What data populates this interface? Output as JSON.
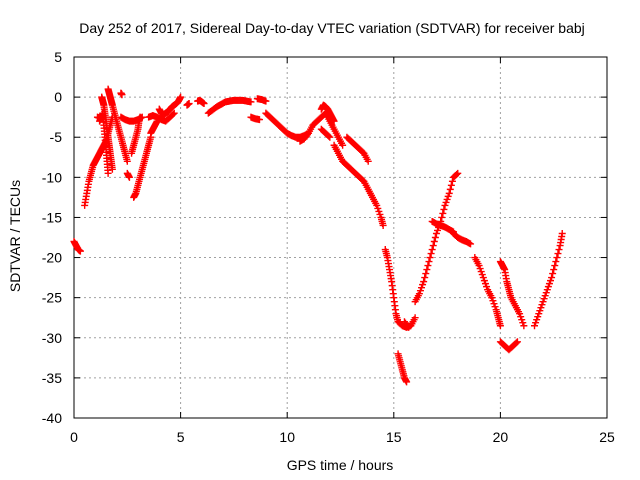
{
  "chart_data": {
    "type": "scatter",
    "title": "Day 252 of 2017, Sidereal Day-to-day VTEC variation (SDTVAR) for receiver babj",
    "xlabel": "GPS time / hours",
    "ylabel": "SDTVAR / TECUs",
    "xlim": [
      0,
      25
    ],
    "ylim": [
      -40,
      5
    ],
    "x_ticks": [
      0,
      5,
      10,
      15,
      20,
      25
    ],
    "y_ticks": [
      5,
      0,
      -5,
      -10,
      -15,
      -20,
      -25,
      -30,
      -35,
      -40
    ],
    "x_tick_labels": [
      "0",
      "5",
      "10",
      "15",
      "20",
      "25"
    ],
    "y_tick_labels": [
      "5",
      "0",
      "-5",
      "-10",
      "-15",
      "-20",
      "-25",
      "-30",
      "-35",
      "-40"
    ],
    "grid": true,
    "marker": "+",
    "marker_color": "#ff0000",
    "series": [
      {
        "name": "s1",
        "points": [
          [
            0.0,
            -18.0
          ],
          [
            0.1,
            -18.5
          ],
          [
            0.2,
            -19.0
          ],
          [
            0.3,
            -19.2
          ]
        ]
      },
      {
        "name": "s2",
        "points": [
          [
            0.5,
            -13.5
          ],
          [
            0.6,
            -12.0
          ],
          [
            0.7,
            -10.5
          ],
          [
            0.8,
            -9.5
          ],
          [
            0.9,
            -8.5
          ],
          [
            1.0,
            -8.0
          ],
          [
            1.1,
            -7.5
          ],
          [
            1.2,
            -7.0
          ],
          [
            1.3,
            -6.5
          ],
          [
            1.4,
            -6.0
          ],
          [
            1.5,
            -5.5
          ],
          [
            1.6,
            -4.5
          ],
          [
            1.7,
            -3.5
          ],
          [
            1.8,
            -2.5
          ]
        ]
      },
      {
        "name": "s3",
        "points": [
          [
            1.2,
            -3.0
          ],
          [
            1.3,
            -2.5
          ],
          [
            1.35,
            -2.0
          ],
          [
            1.4,
            -3.5
          ],
          [
            1.45,
            -5.0
          ],
          [
            1.5,
            -6.5
          ],
          [
            1.55,
            -8.0
          ],
          [
            1.6,
            -9.5
          ]
        ]
      },
      {
        "name": "s4",
        "points": [
          [
            1.3,
            0.0
          ],
          [
            1.35,
            -0.5
          ],
          [
            1.4,
            -1.0
          ],
          [
            1.45,
            -2.0
          ],
          [
            1.5,
            -3.0
          ],
          [
            1.55,
            -4.0
          ],
          [
            1.6,
            -5.0
          ],
          [
            1.65,
            -6.0
          ],
          [
            1.7,
            -7.0
          ],
          [
            1.75,
            -8.0
          ],
          [
            1.8,
            -9.0
          ]
        ]
      },
      {
        "name": "s5",
        "points": [
          [
            1.6,
            1.0
          ],
          [
            1.65,
            0.5
          ],
          [
            1.7,
            0.0
          ],
          [
            1.75,
            -0.5
          ],
          [
            1.8,
            -1.0
          ],
          [
            1.9,
            -2.0
          ],
          [
            2.0,
            -3.0
          ],
          [
            2.1,
            -4.0
          ],
          [
            2.2,
            -5.0
          ],
          [
            2.3,
            -6.0
          ],
          [
            2.4,
            -7.0
          ],
          [
            2.5,
            -8.0
          ]
        ]
      },
      {
        "name": "s6",
        "points": [
          [
            1.1,
            -2.5
          ],
          [
            1.2,
            -2.6
          ]
        ]
      },
      {
        "name": "s7",
        "points": [
          [
            2.2,
            -2.5
          ],
          [
            2.4,
            -2.8
          ],
          [
            2.6,
            -3.0
          ],
          [
            2.8,
            -3.0
          ],
          [
            3.0,
            -2.8
          ],
          [
            3.2,
            -2.5
          ]
        ]
      },
      {
        "name": "s8",
        "points": [
          [
            2.5,
            -9.5
          ],
          [
            2.6,
            -10.0
          ]
        ]
      },
      {
        "name": "s9",
        "points": [
          [
            2.2,
            0.5
          ],
          [
            2.25,
            0.3
          ]
        ]
      },
      {
        "name": "s10",
        "points": [
          [
            2.8,
            -12.5
          ],
          [
            2.9,
            -12.0
          ],
          [
            3.0,
            -11.0
          ],
          [
            3.1,
            -10.0
          ],
          [
            3.2,
            -9.0
          ],
          [
            3.3,
            -8.0
          ],
          [
            3.4,
            -7.0
          ],
          [
            3.5,
            -6.0
          ],
          [
            3.6,
            -5.0
          ]
        ]
      },
      {
        "name": "s11",
        "points": [
          [
            2.7,
            -7.0
          ],
          [
            2.8,
            -6.0
          ],
          [
            2.9,
            -5.0
          ],
          [
            3.0,
            -4.0
          ],
          [
            3.05,
            -3.0
          ],
          [
            3.1,
            -2.5
          ]
        ]
      },
      {
        "name": "s12",
        "points": [
          [
            3.6,
            -4.5
          ],
          [
            3.7,
            -4.0
          ],
          [
            3.8,
            -3.5
          ],
          [
            3.9,
            -3.0
          ]
        ]
      },
      {
        "name": "s13",
        "points": [
          [
            3.5,
            -2.5
          ],
          [
            3.7,
            -2.3
          ],
          [
            3.9,
            -2.5
          ],
          [
            4.1,
            -2.8
          ],
          [
            4.3,
            -3.0
          ],
          [
            4.5,
            -2.5
          ],
          [
            4.7,
            -2.0
          ]
        ]
      },
      {
        "name": "s14",
        "points": [
          [
            4.0,
            -1.5
          ],
          [
            4.1,
            -2.0
          ],
          [
            4.2,
            -2.2
          ],
          [
            4.3,
            -2.0
          ],
          [
            4.4,
            -1.8
          ],
          [
            4.5,
            -1.5
          ],
          [
            4.6,
            -1.2
          ],
          [
            4.7,
            -1.0
          ],
          [
            4.8,
            -0.8
          ],
          [
            4.9,
            -0.5
          ],
          [
            5.0,
            0.0
          ]
        ]
      },
      {
        "name": "s15",
        "points": [
          [
            5.3,
            -1.0
          ],
          [
            5.4,
            -0.8
          ]
        ]
      },
      {
        "name": "s16",
        "points": [
          [
            5.8,
            -0.5
          ],
          [
            5.9,
            -0.4
          ],
          [
            6.0,
            -0.6
          ],
          [
            6.1,
            -0.8
          ]
        ]
      },
      {
        "name": "s17",
        "points": [
          [
            6.3,
            -2.0
          ],
          [
            6.5,
            -1.6
          ],
          [
            6.7,
            -1.2
          ],
          [
            6.9,
            -0.9
          ],
          [
            7.1,
            -0.6
          ],
          [
            7.3,
            -0.5
          ],
          [
            7.5,
            -0.4
          ],
          [
            7.7,
            -0.4
          ],
          [
            7.9,
            -0.4
          ],
          [
            8.1,
            -0.5
          ],
          [
            8.3,
            -0.6
          ]
        ]
      },
      {
        "name": "s18",
        "points": [
          [
            8.3,
            -2.5
          ],
          [
            8.5,
            -2.7
          ],
          [
            8.7,
            -2.8
          ]
        ]
      },
      {
        "name": "s19",
        "points": [
          [
            8.6,
            -0.2
          ],
          [
            8.8,
            -0.3
          ],
          [
            9.0,
            -0.5
          ]
        ]
      },
      {
        "name": "s20",
        "points": [
          [
            9.0,
            -2.0
          ],
          [
            9.2,
            -2.5
          ],
          [
            9.4,
            -3.0
          ],
          [
            9.6,
            -3.5
          ],
          [
            9.8,
            -4.0
          ],
          [
            10.0,
            -4.5
          ],
          [
            10.2,
            -4.8
          ],
          [
            10.4,
            -5.0
          ],
          [
            10.6,
            -5.0
          ],
          [
            10.8,
            -4.8
          ],
          [
            11.0,
            -4.5
          ]
        ]
      },
      {
        "name": "s21",
        "points": [
          [
            10.6,
            -5.5
          ],
          [
            10.8,
            -5.2
          ],
          [
            11.0,
            -4.5
          ],
          [
            11.2,
            -3.5
          ],
          [
            11.4,
            -3.0
          ],
          [
            11.6,
            -2.5
          ],
          [
            11.8,
            -2.0
          ],
          [
            12.0,
            -3.0
          ],
          [
            12.2,
            -4.0
          ],
          [
            12.4,
            -5.0
          ],
          [
            12.6,
            -6.0
          ]
        ]
      },
      {
        "name": "s22",
        "points": [
          [
            11.6,
            -1.5
          ],
          [
            11.7,
            -1.0
          ],
          [
            11.8,
            -1.2
          ],
          [
            11.9,
            -1.5
          ],
          [
            12.0,
            -2.0
          ],
          [
            12.1,
            -2.5
          ],
          [
            12.2,
            -3.0
          ]
        ]
      },
      {
        "name": "s23",
        "points": [
          [
            11.6,
            -4.0
          ],
          [
            11.8,
            -4.5
          ],
          [
            12.0,
            -5.0
          ]
        ]
      },
      {
        "name": "s24",
        "points": [
          [
            12.2,
            -6.0
          ],
          [
            12.4,
            -7.0
          ],
          [
            12.6,
            -8.0
          ],
          [
            12.8,
            -8.5
          ],
          [
            13.0,
            -9.0
          ],
          [
            13.2,
            -9.5
          ],
          [
            13.4,
            -10.0
          ],
          [
            13.6,
            -10.5
          ],
          [
            13.8,
            -11.5
          ],
          [
            14.0,
            -12.5
          ],
          [
            14.2,
            -13.5
          ],
          [
            14.4,
            -15.0
          ],
          [
            14.5,
            -16.0
          ]
        ]
      },
      {
        "name": "s25",
        "points": [
          [
            12.8,
            -5.0
          ],
          [
            13.0,
            -5.5
          ],
          [
            13.2,
            -6.0
          ],
          [
            13.4,
            -6.5
          ],
          [
            13.6,
            -7.0
          ],
          [
            13.8,
            -8.0
          ]
        ]
      },
      {
        "name": "s26",
        "points": [
          [
            14.6,
            -19.0
          ],
          [
            14.7,
            -20.0
          ],
          [
            14.8,
            -21.5
          ],
          [
            14.9,
            -23.0
          ],
          [
            15.0,
            -25.0
          ],
          [
            15.1,
            -27.0
          ],
          [
            15.2,
            -28.0
          ],
          [
            15.4,
            -28.5
          ],
          [
            15.6,
            -28.7
          ],
          [
            15.8,
            -28.5
          ],
          [
            16.0,
            -27.5
          ]
        ]
      },
      {
        "name": "s27",
        "points": [
          [
            15.2,
            -32.0
          ],
          [
            15.3,
            -33.0
          ],
          [
            15.4,
            -34.0
          ],
          [
            15.5,
            -35.0
          ],
          [
            15.6,
            -35.5
          ]
        ]
      },
      {
        "name": "s28",
        "points": [
          [
            15.5,
            -28.0
          ],
          [
            15.7,
            -28.7
          ]
        ]
      },
      {
        "name": "s29",
        "points": [
          [
            16.0,
            -25.5
          ],
          [
            16.2,
            -24.5
          ],
          [
            16.4,
            -23.0
          ],
          [
            16.6,
            -21.0
          ],
          [
            16.8,
            -19.0
          ],
          [
            17.0,
            -17.0
          ],
          [
            17.2,
            -15.5
          ],
          [
            17.4,
            -13.5
          ],
          [
            17.6,
            -12.0
          ],
          [
            17.8,
            -10.0
          ],
          [
            18.0,
            -9.5
          ]
        ]
      },
      {
        "name": "s30",
        "points": [
          [
            16.8,
            -15.5
          ],
          [
            17.0,
            -15.8
          ],
          [
            17.2,
            -16.0
          ],
          [
            17.4,
            -16.2
          ],
          [
            17.6,
            -16.5
          ],
          [
            17.8,
            -16.8
          ]
        ]
      },
      {
        "name": "s31",
        "points": [
          [
            17.8,
            -17.0
          ],
          [
            18.0,
            -17.5
          ],
          [
            18.2,
            -17.8
          ],
          [
            18.4,
            -18.0
          ],
          [
            18.6,
            -18.3
          ]
        ]
      },
      {
        "name": "s32",
        "points": [
          [
            18.8,
            -20.0
          ],
          [
            19.0,
            -21.0
          ],
          [
            19.2,
            -22.5
          ],
          [
            19.4,
            -24.0
          ],
          [
            19.6,
            -25.0
          ]
        ]
      },
      {
        "name": "s33",
        "points": [
          [
            19.6,
            -25.0
          ],
          [
            19.8,
            -26.5
          ],
          [
            19.9,
            -27.5
          ],
          [
            20.0,
            -28.5
          ]
        ]
      },
      {
        "name": "s34",
        "points": [
          [
            20.0,
            -20.5
          ],
          [
            20.1,
            -21.0
          ],
          [
            20.2,
            -21.5
          ],
          [
            20.3,
            -23.0
          ],
          [
            20.4,
            -24.0
          ],
          [
            20.5,
            -25.0
          ],
          [
            20.7,
            -26.0
          ],
          [
            20.9,
            -27.0
          ],
          [
            21.1,
            -28.5
          ]
        ]
      },
      {
        "name": "s35",
        "points": [
          [
            20.0,
            -30.5
          ],
          [
            20.2,
            -31.0
          ],
          [
            20.4,
            -31.5
          ],
          [
            20.6,
            -31.0
          ],
          [
            20.8,
            -30.5
          ]
        ]
      },
      {
        "name": "s36",
        "points": [
          [
            21.6,
            -28.5
          ],
          [
            21.8,
            -27.0
          ],
          [
            22.0,
            -25.5
          ],
          [
            22.2,
            -24.0
          ],
          [
            22.4,
            -22.5
          ],
          [
            22.6,
            -20.5
          ],
          [
            22.8,
            -18.5
          ],
          [
            22.9,
            -17.0
          ]
        ]
      }
    ]
  }
}
